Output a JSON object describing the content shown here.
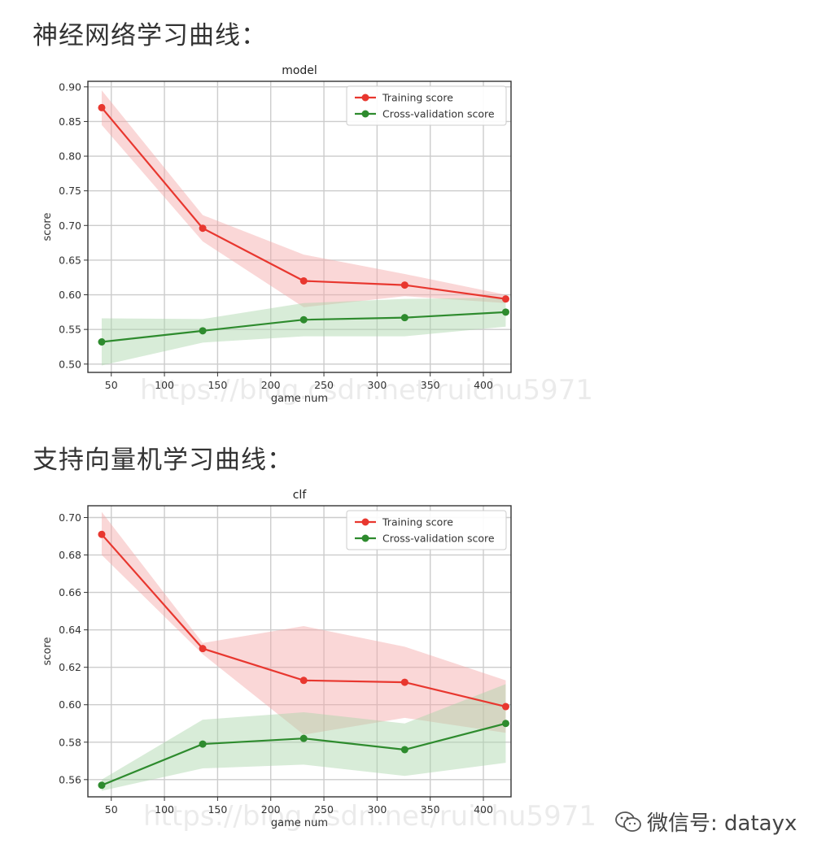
{
  "headings": {
    "nn": "神经网络学习曲线：",
    "svm": "支持向量机学习曲线："
  },
  "watermark": "https://blog.csdn.net/ruichu5971",
  "badge": {
    "icon": "wechat-icon",
    "text": "微信号: datayx"
  },
  "colors": {
    "train": "#e8372f",
    "cv": "#2e8b2e",
    "train_band": "#f4a6a6",
    "cv_band": "#a8d5a8"
  },
  "chart_data": [
    {
      "type": "line",
      "title": "model",
      "xlabel": "game num",
      "ylabel": "score",
      "xlim": [
        28,
        426
      ],
      "ylim": [
        0.488,
        0.908
      ],
      "xticks": [
        50,
        100,
        150,
        200,
        250,
        300,
        350,
        400
      ],
      "yticks": [
        0.5,
        0.55,
        0.6,
        0.65,
        0.7,
        0.75,
        0.8,
        0.85,
        0.9
      ],
      "ytick_labels": [
        "0.50",
        "0.55",
        "0.60",
        "0.65",
        "0.70",
        "0.75",
        "0.80",
        "0.85",
        "0.90"
      ],
      "grid": true,
      "legend": "top-right",
      "x": [
        41,
        136,
        231,
        326,
        421
      ],
      "series": [
        {
          "name": "Training score",
          "color_key": "train",
          "values": [
            0.87,
            0.696,
            0.62,
            0.614,
            0.594
          ],
          "upper": [
            0.895,
            0.715,
            0.658,
            0.63,
            0.6
          ],
          "lower": [
            0.845,
            0.677,
            0.582,
            0.598,
            0.588
          ]
        },
        {
          "name": "Cross-validation score",
          "color_key": "cv",
          "values": [
            0.532,
            0.548,
            0.564,
            0.567,
            0.575
          ],
          "upper": [
            0.566,
            0.565,
            0.588,
            0.594,
            0.596
          ],
          "lower": [
            0.498,
            0.531,
            0.54,
            0.54,
            0.554
          ]
        }
      ]
    },
    {
      "type": "line",
      "title": "clf",
      "xlabel": "game num",
      "ylabel": "score",
      "xlim": [
        28,
        426
      ],
      "ylim": [
        0.5508,
        0.7063
      ],
      "xticks": [
        50,
        100,
        150,
        200,
        250,
        300,
        350,
        400
      ],
      "yticks": [
        0.56,
        0.58,
        0.6,
        0.62,
        0.64,
        0.66,
        0.68,
        0.7
      ],
      "ytick_labels": [
        "0.56",
        "0.58",
        "0.60",
        "0.62",
        "0.64",
        "0.66",
        "0.68",
        "0.70"
      ],
      "grid": true,
      "legend": "top-right",
      "x": [
        41,
        136,
        231,
        326,
        421
      ],
      "series": [
        {
          "name": "Training score",
          "color_key": "train",
          "values": [
            0.691,
            0.63,
            0.613,
            0.612,
            0.599
          ],
          "upper": [
            0.703,
            0.633,
            0.642,
            0.631,
            0.613
          ],
          "lower": [
            0.68,
            0.627,
            0.584,
            0.593,
            0.585
          ]
        },
        {
          "name": "Cross-validation score",
          "color_key": "cv",
          "values": [
            0.557,
            0.579,
            0.582,
            0.576,
            0.59
          ],
          "upper": [
            0.56,
            0.592,
            0.596,
            0.59,
            0.611
          ],
          "lower": [
            0.554,
            0.566,
            0.568,
            0.562,
            0.569
          ]
        }
      ]
    }
  ]
}
